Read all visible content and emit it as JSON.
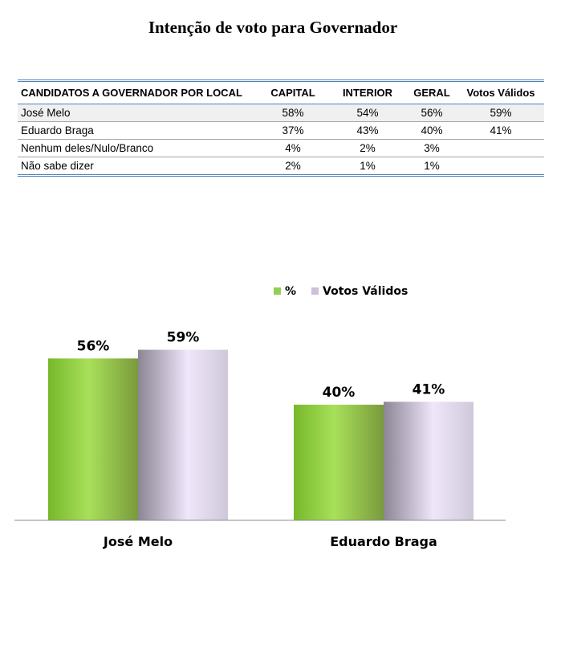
{
  "title": "Intenção de voto para Governador",
  "table": {
    "headers": [
      "CANDIDATOS A GOVERNADOR POR LOCAL",
      "CAPITAL",
      "INTERIOR",
      "GERAL",
      "Votos Válidos"
    ],
    "rows": [
      [
        "José Melo",
        "58%",
        "54%",
        "56%",
        "59%"
      ],
      [
        "Eduardo Braga",
        "37%",
        "43%",
        "40%",
        "41%"
      ],
      [
        "Nenhum deles/Nulo/Branco",
        "4%",
        "2%",
        "3%",
        ""
      ],
      [
        "Não sabe dizer",
        "2%",
        "1%",
        "1%",
        ""
      ]
    ]
  },
  "chart_data": {
    "type": "bar",
    "categories": [
      "José Melo",
      "Eduardo Braga"
    ],
    "series": [
      {
        "name": "%",
        "values": [
          56,
          40
        ],
        "labels": [
          "56%",
          "40%"
        ],
        "color": "#92d050"
      },
      {
        "name": "Votos Válidos",
        "values": [
          59,
          41
        ],
        "labels": [
          "59%",
          "41%"
        ],
        "color": "#ccc0da"
      }
    ],
    "legend": "top",
    "grid": false
  }
}
